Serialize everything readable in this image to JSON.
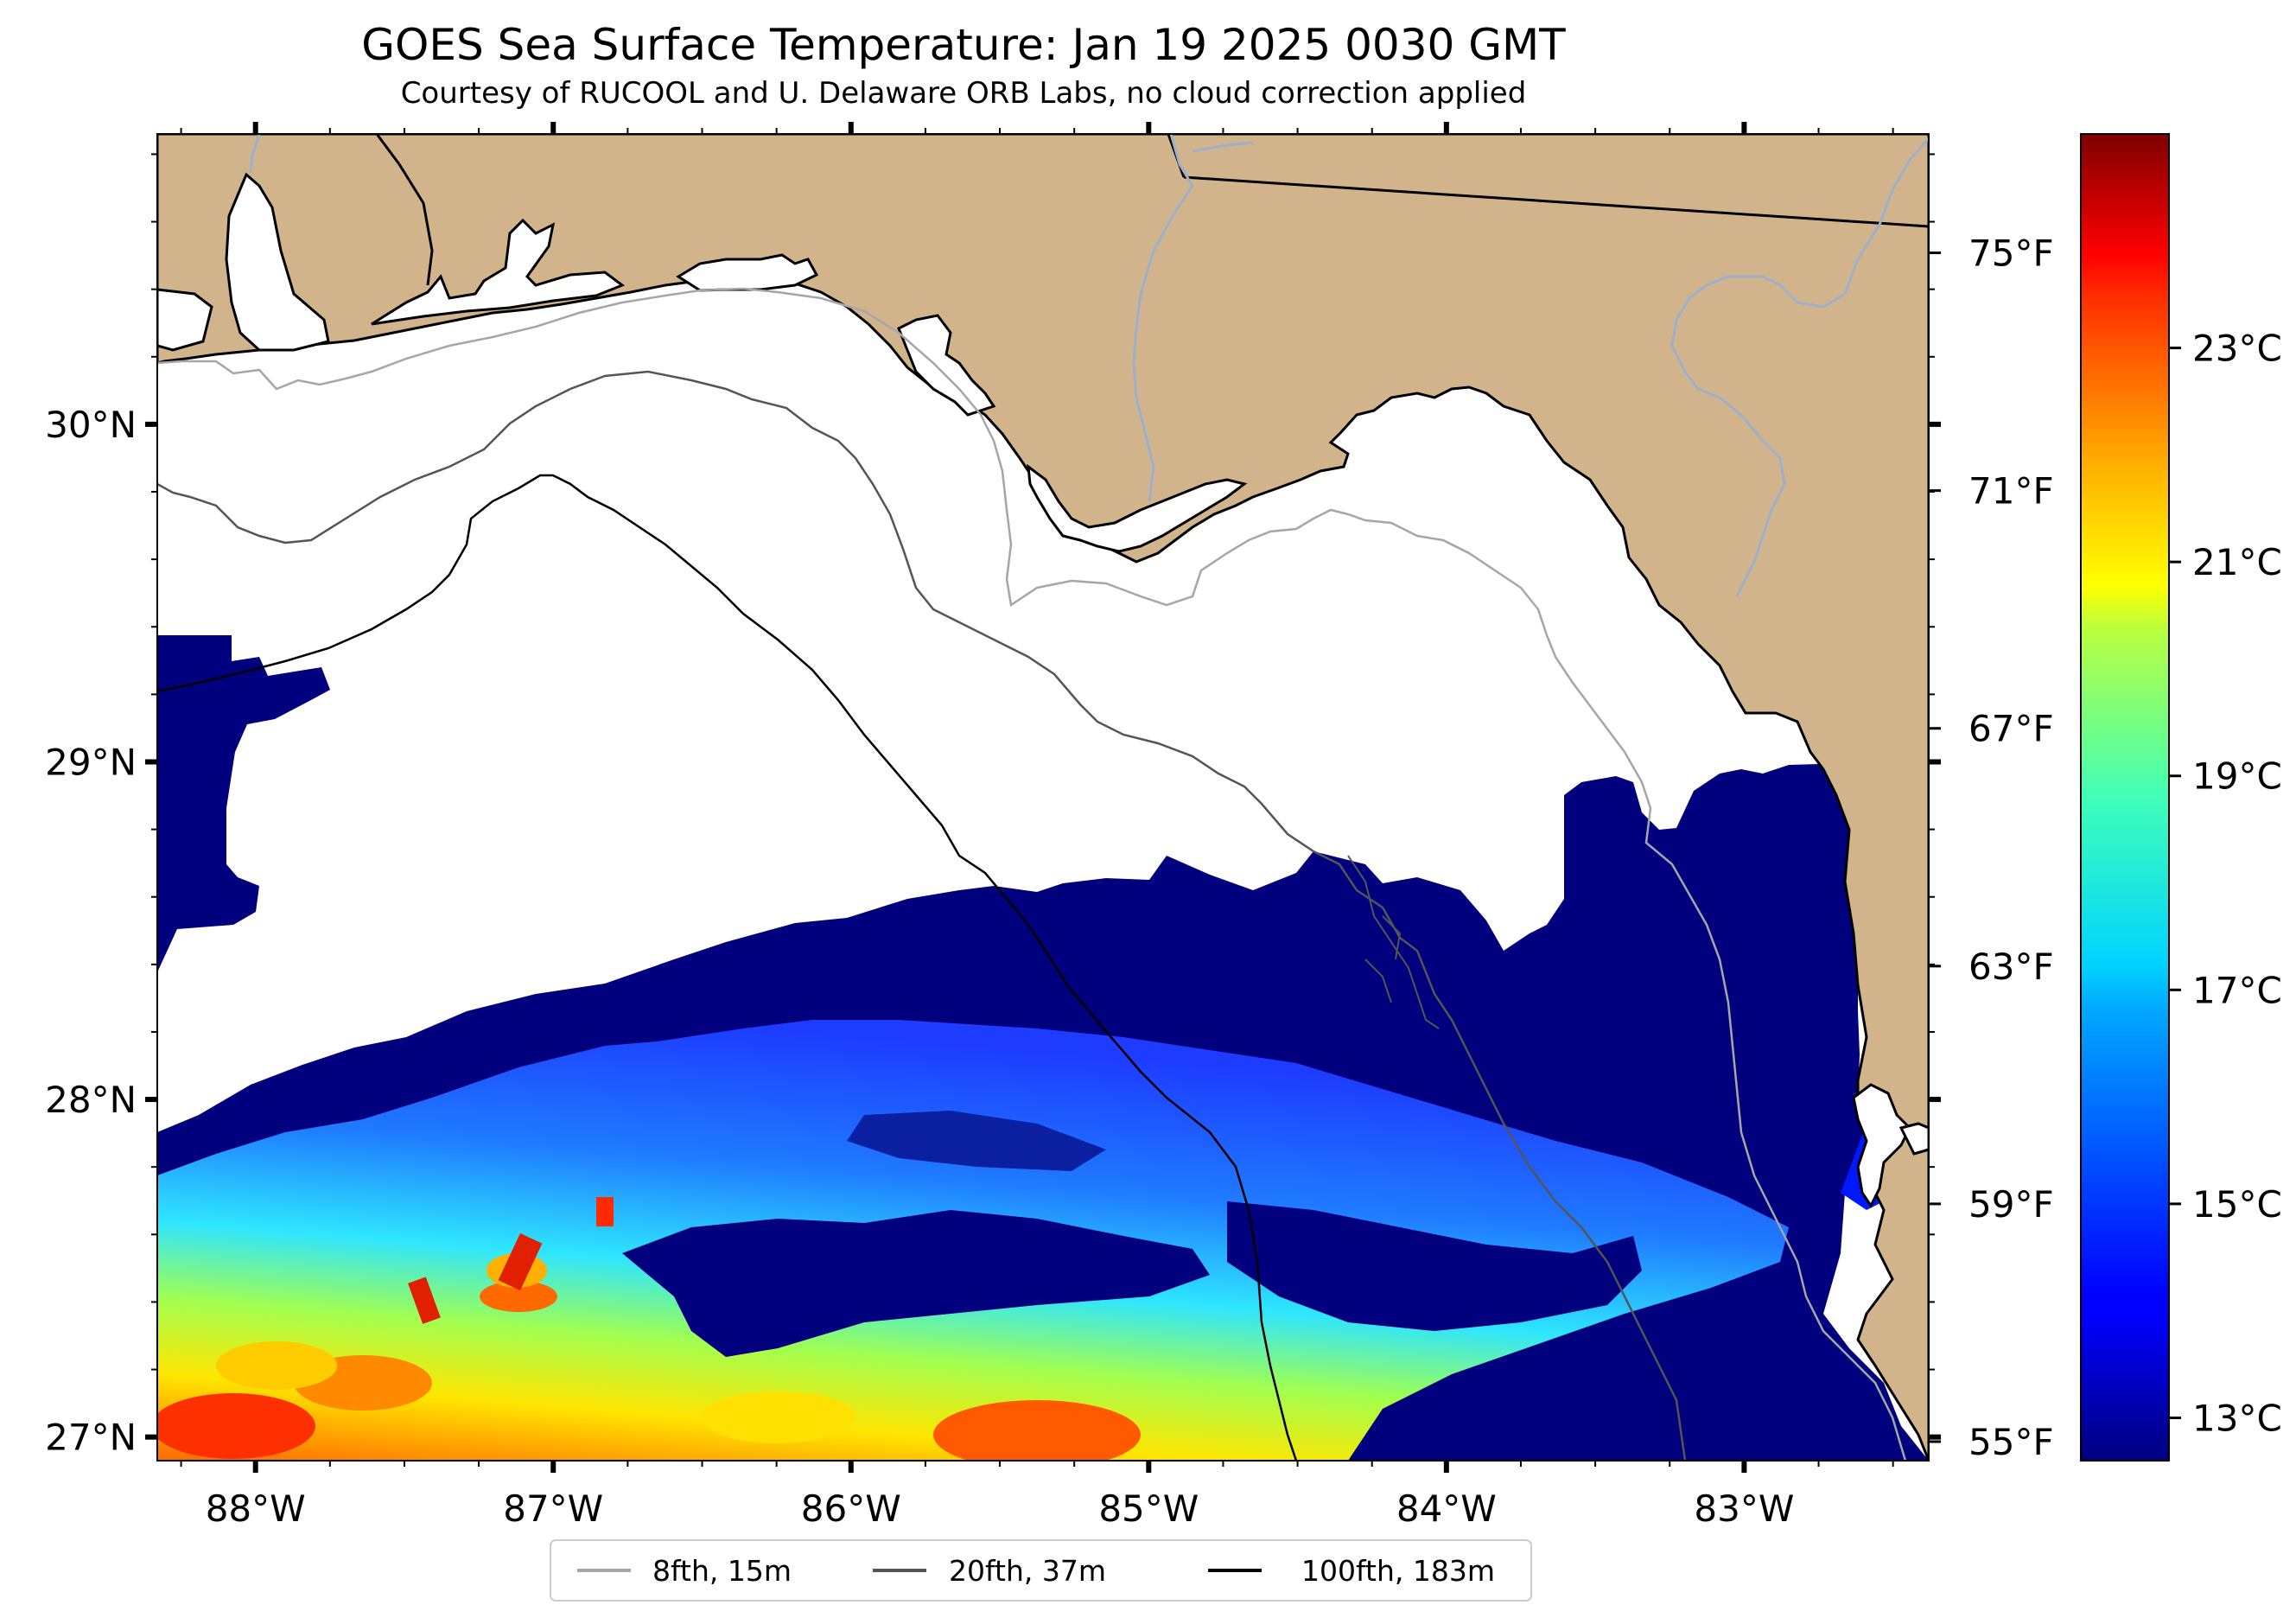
{
  "title": "GOES Sea Surface Temperature: Jan 19 2025 0030 GMT",
  "subtitle": "Courtesy of RUCOOL and U. Delaware ORB Labs, no cloud correction applied",
  "map": {
    "extent": {
      "lon_min": -88.33,
      "lon_max": -82.38,
      "lat_min": 26.93,
      "lat_max": 30.86
    },
    "lon_ticks": [
      {
        "value": -88,
        "label": "88°W"
      },
      {
        "value": -87,
        "label": "87°W"
      },
      {
        "value": -86,
        "label": "86°W"
      },
      {
        "value": -85,
        "label": "85°W"
      },
      {
        "value": -84,
        "label": "84°W"
      },
      {
        "value": -83,
        "label": "83°W"
      }
    ],
    "lat_ticks": [
      {
        "value": 27,
        "label": "27°N"
      },
      {
        "value": 28,
        "label": "28°N"
      },
      {
        "value": 29,
        "label": "29°N"
      },
      {
        "value": 30,
        "label": "30°N"
      }
    ],
    "fahrenheit_ticks": [
      {
        "value": 55,
        "label": "55°F"
      },
      {
        "value": 59,
        "label": "59°F"
      },
      {
        "value": 63,
        "label": "63°F"
      },
      {
        "value": 67,
        "label": "67°F"
      },
      {
        "value": 71,
        "label": "71°F"
      },
      {
        "value": 75,
        "label": "75°F"
      }
    ],
    "colors": {
      "land": "#d2b48c",
      "ocean_nodata": "#ffffff",
      "river": "#9db0c8",
      "coast": "#000000"
    }
  },
  "colorbar": {
    "colormap": "jet",
    "range_c": [
      12.6,
      25.0
    ],
    "ticks": [
      {
        "value": 13,
        "label": "13°C"
      },
      {
        "value": 15,
        "label": "15°C"
      },
      {
        "value": 17,
        "label": "17°C"
      },
      {
        "value": 19,
        "label": "19°C"
      },
      {
        "value": 21,
        "label": "21°C"
      },
      {
        "value": 23,
        "label": "23°C"
      }
    ]
  },
  "legend": {
    "items": [
      {
        "label": "8fth, 15m",
        "color": "#a6a6a6"
      },
      {
        "label": "20fth, 37m",
        "color": "#555555"
      },
      {
        "label": "100fth, 183m",
        "color": "#000000"
      }
    ]
  }
}
